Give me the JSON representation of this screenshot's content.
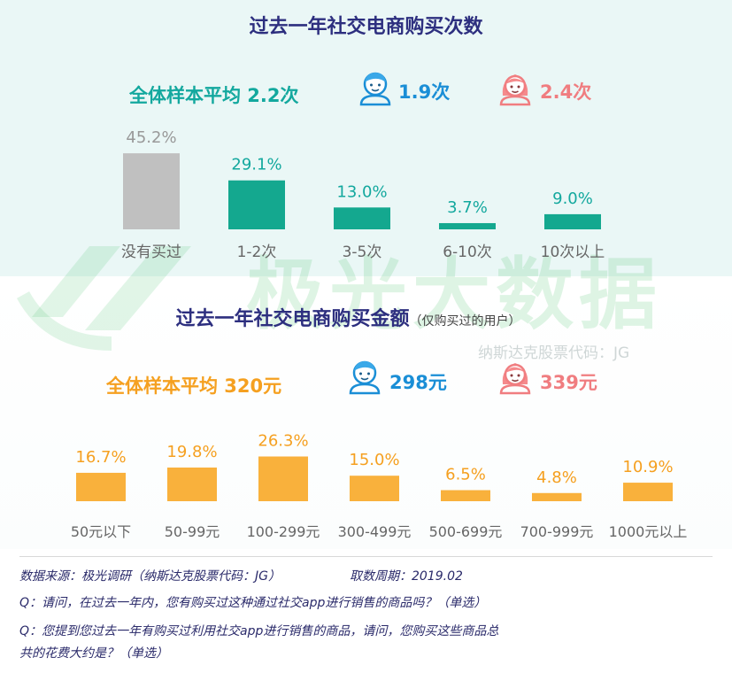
{
  "watermark": {
    "brand": "极光大数据",
    "code": "纳斯达克股票代码：JG"
  },
  "chart_data": [
    {
      "type": "bar",
      "title": "过去一年社交电商购买次数",
      "categories": [
        "没有买过",
        "1-2次",
        "3-5次",
        "6-10次",
        "10次以上"
      ],
      "values": [
        45.2,
        29.1,
        13.0,
        3.7,
        9.0
      ],
      "value_labels": [
        "45.2%",
        "29.1%",
        "13.0%",
        "3.7%",
        "9.0%"
      ],
      "colors": [
        "#c0c0c0",
        "#14a88f",
        "#14a88f",
        "#14a88f",
        "#14a88f"
      ],
      "average": "全体样本平均 2.2次",
      "male": "1.9次",
      "female": "2.4次"
    },
    {
      "type": "bar",
      "title": "过去一年社交电商购买金额",
      "note": "（仅购买过的用户）",
      "categories": [
        "50元以下",
        "50-99元",
        "100-299元",
        "300-499元",
        "500-699元",
        "700-999元",
        "1000元以上"
      ],
      "values": [
        16.7,
        19.8,
        26.3,
        15.0,
        6.5,
        4.8,
        10.9
      ],
      "value_labels": [
        "16.7%",
        "19.8%",
        "26.3%",
        "15.0%",
        "6.5%",
        "4.8%",
        "10.9%"
      ],
      "colors": [
        "#f9b13c"
      ],
      "average": "全体样本平均 320元",
      "male": "298元",
      "female": "339元"
    }
  ],
  "footer": {
    "source": "数据来源：极光调研（纳斯达克股票代码：JG）",
    "period": "取数周期：2019.02",
    "q1": "Q：请问，在过去一年内，您有购买过这种通过社交app进行销售的商品吗？（单选）",
    "q2a": "Q：您提到您过去一年有购买过利用社交app进行销售的商品，请问，您购买这些商品总",
    "q2b": "共的花费大约是？（单选）"
  }
}
